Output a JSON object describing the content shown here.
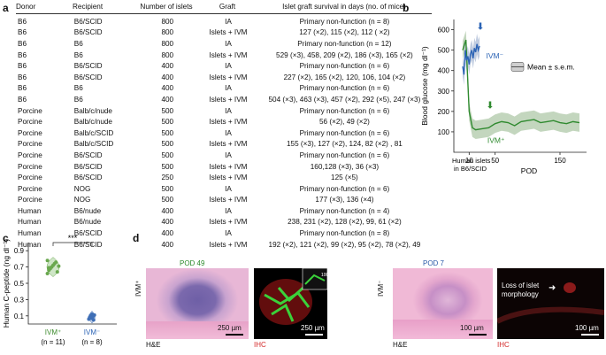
{
  "panels": {
    "a": "a",
    "b": "b",
    "c": "c",
    "d": "d"
  },
  "table": {
    "headers": [
      "Donor",
      "Recipient",
      "Number of islets",
      "Graft",
      "Islet graft survival in days (no. of mice)"
    ],
    "rows": [
      [
        "B6",
        "B6/SCID",
        "800",
        "IA",
        "Primary non-function (n = 8)"
      ],
      [
        "B6",
        "B6/SCID",
        "800",
        "Islets + IVM",
        "127 (×2), 115 (×2), 112 ( ×2)"
      ],
      [
        "B6",
        "B6",
        "800",
        "IA",
        "Primary non-function (n = 12)"
      ],
      [
        "B6",
        "B6",
        "800",
        "Islets + IVM",
        "529 (×3), 458, 209 (×2), 186 (×3), 165 (×2)"
      ],
      [
        "B6",
        "B6/SCID",
        "400",
        "IA",
        "Primary non-function (n = 6)"
      ],
      [
        "B6",
        "B6/SCID",
        "400",
        "Islets + IVM",
        "227 (×2), 165 (×2), 120, 106, 104 (×2)"
      ],
      [
        "B6",
        "B6",
        "400",
        "IA",
        "Primary non-function (n = 6)"
      ],
      [
        "B6",
        "B6",
        "400",
        "Islets + IVM",
        "504 (×3), 463 (×3), 457 (×2), 292 (×5), 247 (×3)"
      ],
      [
        "Porcine",
        "Balb/c/nude",
        "500",
        "IA",
        "Primary non-function (n = 6)"
      ],
      [
        "Porcine",
        "Balb/c/nude",
        "500",
        "Islets + IVM",
        "56 (×2), 49 (×2)"
      ],
      [
        "Porcine",
        "Balb/c/SCID",
        "500",
        "IA",
        "Primary non-function (n = 6)"
      ],
      [
        "Porcine",
        "Balb/c/SCID",
        "500",
        "Islets + IVM",
        "155 (×3), 127 (×2), 124, 82 (×2) , 81"
      ],
      [
        "Porcine",
        "B6/SCID",
        "500",
        "IA",
        "Primary non-function (n = 6)"
      ],
      [
        "Porcine",
        "B6/SCID",
        "500",
        "Islets + IVM",
        "160,128 (×3), 36 (×3)"
      ],
      [
        "Porcine",
        "B6/SCID",
        "250",
        "Islets + IVM",
        "125 (×5)"
      ],
      [
        "Porcine",
        "NOG",
        "500",
        "IA",
        "Primary non-function (n = 6)"
      ],
      [
        "Porcine",
        "NOG",
        "500",
        "Islets + IVM",
        "177 (×3), 136 (×4)"
      ],
      [
        "Human",
        "B6/nude",
        "400",
        "IA",
        "Primary non-function (n = 4)"
      ],
      [
        "Human",
        "B6/nude",
        "400",
        "Islets + IVM",
        "238, 231 (×2), 128 (×2), 99, 61 (×2)"
      ],
      [
        "Human",
        "B6/SCID",
        "400",
        "IA",
        "Primary non-function (n = 8)"
      ],
      [
        "Human",
        "B6/SCID",
        "400",
        "Islets + IVM",
        "192 (×2), 121 (×2), 99 (×2), 95 (×2), 78 (×2), 49"
      ]
    ]
  },
  "panel_b": {
    "ylabel": "Blood glucose (mg dl⁻¹)",
    "xlabel": "POD",
    "xtick_first_line1": "Human islets",
    "xtick_first_line2": "in B6/SCID",
    "legend_label": "Mean ± s.e.m.",
    "series_label_ivm_neg": "IVM⁻",
    "series_label_ivm_pos": "IVM⁺"
  },
  "panel_c": {
    "ylabel": "Human C-peptide (ng dl⁻¹)",
    "significance": "***",
    "group1_label": "IVM⁺",
    "group1_n": "(n = 11)",
    "group2_label": "IVM⁻",
    "group2_n": "(n = 8)"
  },
  "panel_d": {
    "ivm_pos_label": "IVM⁺",
    "ivm_neg_label": "IVM⁻",
    "pod_pos": "POD 49",
    "pod_neg": "POD 7",
    "he_label": "H&E",
    "ihc_label": "IHC",
    "scale_250": "250 µm",
    "scale_100": "100 µm",
    "annotation": "Loss of islet morphology",
    "colors": {
      "pod": "#2a8a2a",
      "pod_neg": "#2a5aa8",
      "ihc": "#d42a2a"
    }
  },
  "chart_data": [
    {
      "type": "line",
      "ylim": [
        0,
        650
      ],
      "yticks": [
        100,
        200,
        300,
        400,
        500,
        600
      ],
      "xticks": [
        "10",
        "50",
        "150"
      ],
      "series": [
        {
          "name": "IVM⁻",
          "color": "#2b63b5",
          "x_pod": [
            0,
            2,
            4,
            6,
            8,
            10,
            12,
            14,
            16,
            18,
            20,
            22,
            24,
            26
          ],
          "values": [
            420,
            380,
            500,
            450,
            470,
            430,
            480,
            500,
            460,
            510,
            490,
            530,
            500,
            520
          ]
        },
        {
          "name": "IVM⁺",
          "color": "#2f8a2f",
          "x_pod": [
            0,
            5,
            10,
            15,
            20,
            30,
            40,
            50,
            60,
            70,
            80,
            90,
            100,
            110,
            120,
            130,
            140,
            150,
            160,
            170,
            180
          ],
          "values": [
            500,
            550,
            200,
            120,
            110,
            115,
            120,
            140,
            150,
            145,
            130,
            150,
            155,
            160,
            145,
            150,
            155,
            145,
            140,
            150,
            145
          ]
        }
      ]
    },
    {
      "type": "scatter",
      "ylim": [
        0,
        1.0
      ],
      "yticks": [
        0.1,
        0.3,
        0.5,
        0.7,
        0.9
      ],
      "categories": [
        "IVM⁺",
        "IVM⁻"
      ],
      "series": [
        {
          "name": "IVM⁺",
          "values": [
            0.62,
            0.66,
            0.68,
            0.7,
            0.72,
            0.74,
            0.76,
            0.64,
            0.71,
            0.78,
            0.69
          ]
        },
        {
          "name": "IVM⁻",
          "values": [
            0.06,
            0.08,
            0.1,
            0.07,
            0.12,
            0.09,
            0.05,
            0.11
          ]
        }
      ]
    }
  ]
}
